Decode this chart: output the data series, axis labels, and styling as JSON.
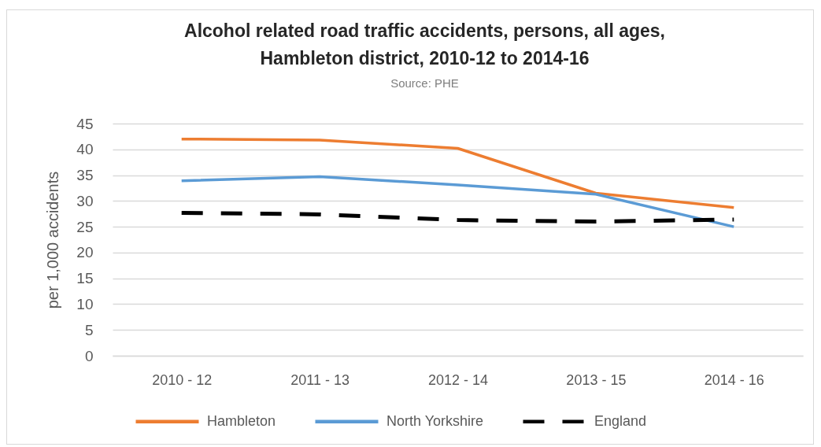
{
  "chart_data": {
    "type": "line",
    "title": "Alcohol related road traffic accidents, persons, all ages, Hambleton district, 2010-12 to 2014-16",
    "annotations": [
      "Source: PHE"
    ],
    "ylabel": "per 1,000 accidents",
    "categories": [
      "2010 - 12",
      "2011 - 13",
      "2012 - 14",
      "2013 - 15",
      "2014 - 16"
    ],
    "series": [
      {
        "name": "Hambleton",
        "color": "#ed7d31",
        "values": [
          42.0,
          41.8,
          40.2,
          31.5,
          28.7
        ]
      },
      {
        "name": "North Yorkshire",
        "color": "#5b9bd5",
        "values": [
          33.9,
          34.7,
          33.1,
          31.3,
          25.0
        ]
      },
      {
        "name": "England",
        "color": "#000000",
        "line_style": "dashed",
        "values": [
          27.7,
          27.4,
          26.3,
          26.0,
          26.4
        ]
      }
    ],
    "ylim": [
      0,
      45
    ],
    "yticks": [
      0,
      5,
      10,
      15,
      20,
      25,
      30,
      35,
      40,
      45
    ],
    "grid": "y",
    "legend": "bottom"
  }
}
